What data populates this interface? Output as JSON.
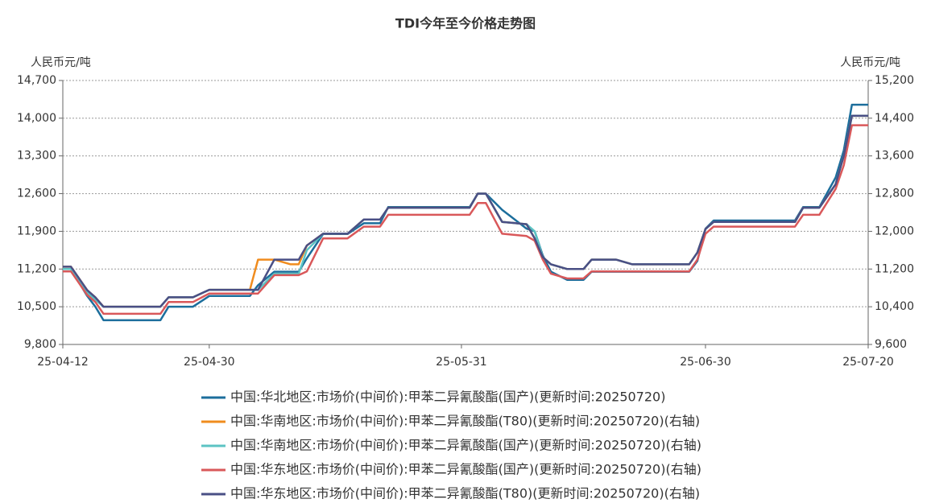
{
  "chart_data": {
    "type": "line",
    "title": "TDI今年至今价格走势图",
    "y_label": "人民币元/吨",
    "y2_label": "人民币元/吨",
    "x": [
      "25-04-12",
      "25-04-13",
      "25-04-15",
      "25-04-16",
      "25-04-17",
      "25-04-24",
      "25-04-25",
      "25-04-28",
      "25-04-30",
      "25-05-05",
      "25-05-06",
      "25-05-08",
      "25-05-10",
      "25-05-11",
      "25-05-12",
      "25-05-14",
      "25-05-17",
      "25-05-19",
      "25-05-21",
      "25-05-22",
      "25-06-01",
      "25-06-02",
      "25-06-03",
      "25-06-05",
      "25-06-08",
      "25-06-09",
      "25-06-10",
      "25-06-11",
      "25-06-13",
      "25-06-15",
      "25-06-16",
      "25-06-19",
      "25-06-21",
      "25-06-28",
      "25-06-29",
      "25-06-30",
      "25-07-01",
      "25-07-11",
      "25-07-12",
      "25-07-14",
      "25-07-16",
      "25-07-17",
      "25-07-18",
      "25-07-20"
    ],
    "xlim": [
      "25-04-12",
      "25-07-20"
    ],
    "xticks": [
      "25-04-12",
      "25-04-30",
      "25-05-31",
      "25-06-30",
      "25-07-20"
    ],
    "ylim": [
      9800,
      14700
    ],
    "yticks": [
      {
        "value": 9800,
        "label": "9,800"
      },
      {
        "value": 10500,
        "label": "10,500"
      },
      {
        "value": 11200,
        "label": "11,200"
      },
      {
        "value": 11900,
        "label": "11,900"
      },
      {
        "value": 12600,
        "label": "12,600"
      },
      {
        "value": 13300,
        "label": "13,300"
      },
      {
        "value": 14000,
        "label": "14,000"
      },
      {
        "value": 14700,
        "label": "14,700"
      }
    ],
    "y2lim": [
      9600,
      15200
    ],
    "y2ticks": [
      {
        "value": 9600,
        "label": "9,600"
      },
      {
        "value": 10400,
        "label": "10,400"
      },
      {
        "value": 11200,
        "label": "11,200"
      },
      {
        "value": 12000,
        "label": "12,000"
      },
      {
        "value": 12800,
        "label": "12,800"
      },
      {
        "value": 13600,
        "label": "13,600"
      },
      {
        "value": 14400,
        "label": "14,400"
      },
      {
        "value": 15200,
        "label": "15,200"
      }
    ],
    "grid": true,
    "legend": "bottom",
    "series": [
      {
        "name": "中国:华北地区:市场价(中间价):甲苯二异氰酸酯(国产)(更新时间:20250720)",
        "color": "#1c6e9c",
        "values": [
          11200,
          11200,
          10700,
          10500,
          10250,
          10250,
          10500,
          10500,
          10700,
          10700,
          10900,
          11150,
          11150,
          11150,
          11400,
          11850,
          11850,
          12050,
          12050,
          12350,
          12350,
          12600,
          12600,
          12300,
          11950,
          11900,
          11450,
          11150,
          11000,
          11000,
          11150,
          11150,
          11150,
          11150,
          11350,
          11950,
          12100,
          12100,
          12350,
          12350,
          12900,
          13400,
          14250,
          14250
        ]
      },
      {
        "name": "中国:华南地区:市场价(中间价):甲苯二异氰酸酯(T80)(更新时间:20250720)(右轴)",
        "color": "#f08c1e",
        "axis": "y2",
        "values": [
          11250,
          11250,
          10750,
          10600,
          10400,
          10400,
          10600,
          10600,
          10760,
          10760,
          11400,
          11400,
          11300,
          11300,
          11700,
          11950,
          11950,
          12250,
          12250,
          12500,
          12500,
          12800,
          12800,
          12200,
          12150,
          11850,
          11450,
          11300,
          11200,
          11200,
          11400,
          11400,
          11300,
          11300,
          11550,
          12050,
          12200,
          12200,
          12500,
          12500,
          13000,
          13600,
          14450,
          14450
        ]
      },
      {
        "name": "中国:华南地区:市场价(中间价):甲苯二异氰酸酯(国产)(更新时间:20250720)(右轴)",
        "color": "#5cc3c3",
        "axis": "y2",
        "values": [
          11200,
          11200,
          10700,
          10550,
          10400,
          10400,
          10600,
          10600,
          10760,
          10760,
          10760,
          11100,
          11100,
          11100,
          11600,
          11950,
          11950,
          12250,
          12250,
          12500,
          12500,
          12800,
          12800,
          12200,
          12150,
          12000,
          11450,
          11300,
          11200,
          11200,
          11400,
          11400,
          11300,
          11300,
          11550,
          12050,
          12200,
          12200,
          12500,
          12500,
          13000,
          13600,
          14450,
          14450
        ]
      },
      {
        "name": "中国:华东地区:市场价(中间价):甲苯二异氰酸酯(国产)(更新时间:20250720)(右轴)",
        "color": "#d9585a",
        "axis": "y2",
        "values": [
          11150,
          11150,
          10650,
          10500,
          10250,
          10250,
          10500,
          10500,
          10680,
          10680,
          10680,
          11070,
          11070,
          11070,
          11150,
          11850,
          11850,
          12100,
          12100,
          12350,
          12350,
          12600,
          12600,
          11950,
          11900,
          11800,
          11400,
          11100,
          11000,
          11000,
          11150,
          11150,
          11150,
          11150,
          11400,
          11950,
          12100,
          12100,
          12350,
          12350,
          12900,
          13400,
          14250,
          14250
        ]
      },
      {
        "name": "中国:华东地区:市场价(中间价):甲苯二异氰酸酯(T80)(更新时间:20250720)(右轴)",
        "color": "#4a4f85",
        "axis": "y2",
        "values": [
          11250,
          11250,
          10750,
          10600,
          10400,
          10400,
          10600,
          10600,
          10760,
          10760,
          10760,
          11400,
          11400,
          11400,
          11700,
          11950,
          11950,
          12250,
          12250,
          12500,
          12500,
          12800,
          12800,
          12200,
          12150,
          11850,
          11450,
          11300,
          11200,
          11200,
          11400,
          11400,
          11300,
          11300,
          11550,
          12050,
          12200,
          12200,
          12500,
          12500,
          13000,
          13600,
          14450,
          14450
        ]
      }
    ]
  }
}
